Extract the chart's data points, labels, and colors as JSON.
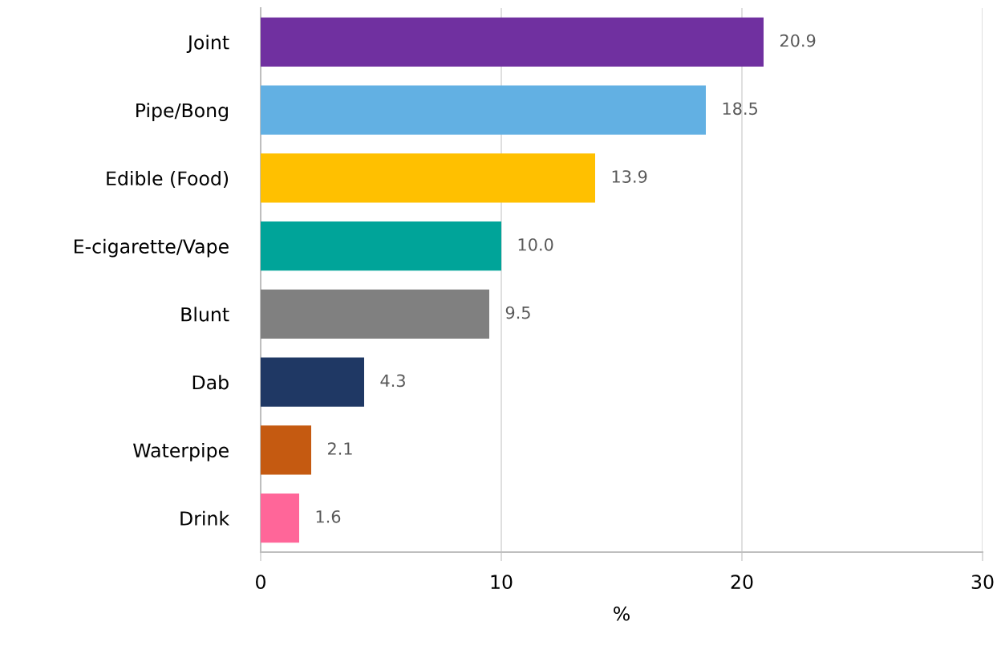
{
  "chart_data": {
    "type": "bar",
    "orientation": "horizontal",
    "xlabel": "%",
    "categories": [
      "Joint",
      "Pipe/Bong",
      "Edible (Food)",
      "E-cigarette/Vape",
      "Blunt",
      "Dab",
      "Waterpipe",
      "Drink"
    ],
    "values": [
      20.9,
      18.5,
      13.9,
      10.0,
      9.5,
      4.3,
      2.1,
      1.6
    ],
    "value_labels": [
      "20.9",
      "18.5",
      "13.9",
      "10.0",
      "9.5",
      "4.3",
      "2.1",
      "1.6"
    ],
    "colors": [
      "#7030a0",
      "#62b0e3",
      "#ffc000",
      "#00a499",
      "#808080",
      "#1f3864",
      "#c55a11",
      "#ff6699"
    ],
    "xlim": [
      0,
      30
    ],
    "xticks": [
      0,
      10,
      20,
      30
    ],
    "grid": "x"
  }
}
